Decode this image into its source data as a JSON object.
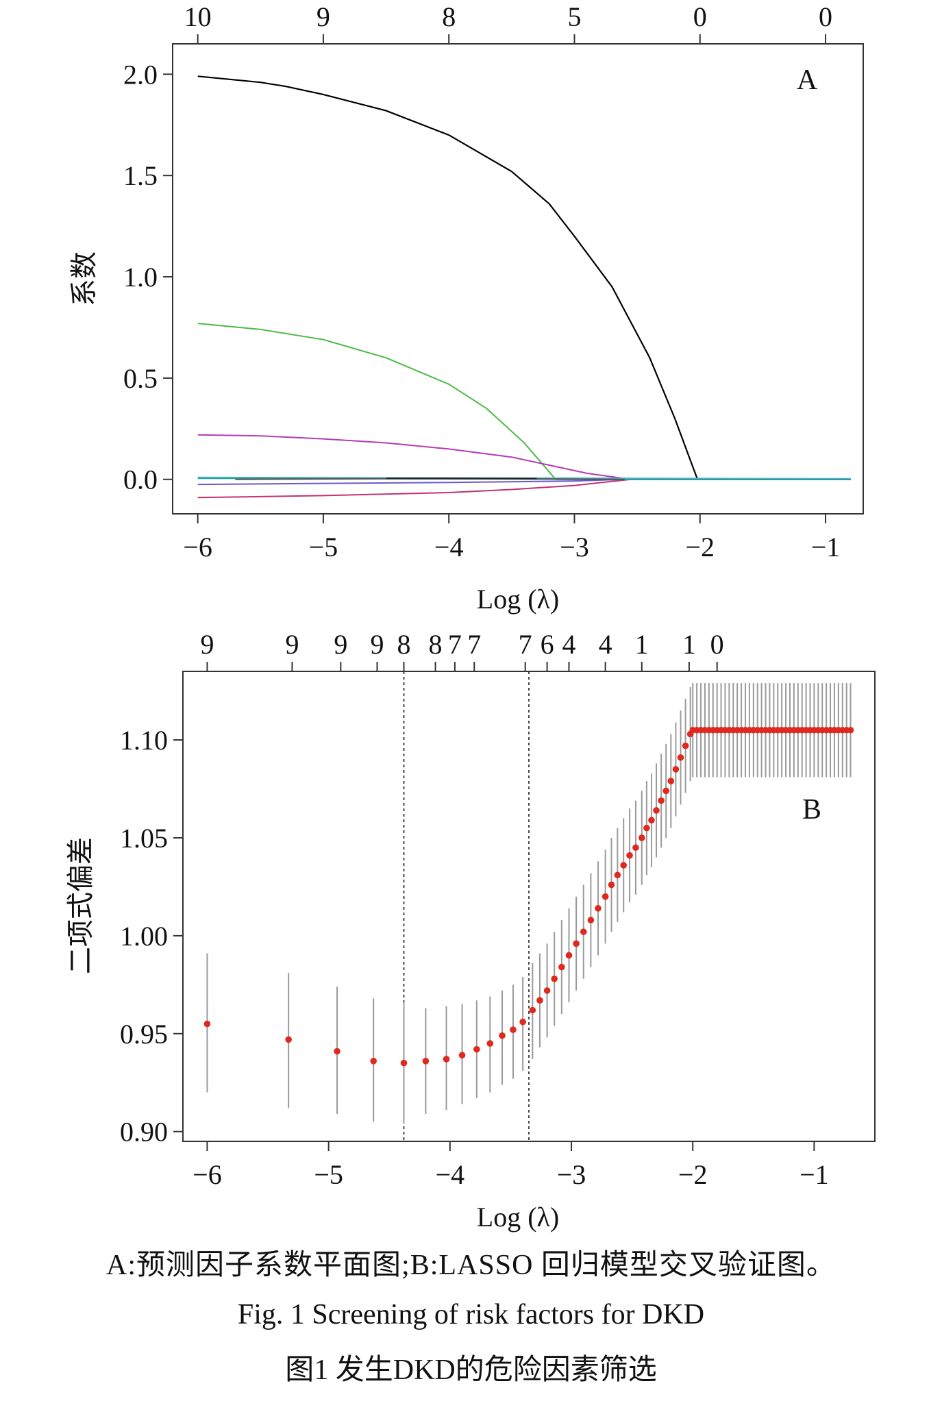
{
  "chart_data": [
    {
      "type": "line",
      "panel_label": "A",
      "xlabel": "Log (λ)",
      "ylabel": "系数",
      "xlim": [
        -6.2,
        -0.7
      ],
      "ylim": [
        -0.17,
        2.15
      ],
      "x_ticks": [
        -6,
        -5,
        -4,
        -3,
        -2,
        -1
      ],
      "y_ticks": [
        "0.0",
        "0.5",
        "1.0",
        "1.5",
        "2.0"
      ],
      "top_axis_ticks": [
        {
          "x": -6,
          "label": "10"
        },
        {
          "x": -5,
          "label": "9"
        },
        {
          "x": -4,
          "label": "8"
        },
        {
          "x": -3,
          "label": "5"
        },
        {
          "x": -2,
          "label": "0"
        },
        {
          "x": -1,
          "label": "0"
        }
      ],
      "series": [
        {
          "color": "#000000",
          "x": [
            -6,
            -5.5,
            -5.3,
            -5,
            -4.5,
            -4,
            -3.5,
            -3.2,
            -3,
            -2.7,
            -2.4,
            -2.2,
            -2.08,
            -2.02,
            -1.5,
            -0.8
          ],
          "y": [
            1.99,
            1.96,
            1.94,
            1.9,
            1.82,
            1.7,
            1.52,
            1.36,
            1.2,
            0.95,
            0.6,
            0.3,
            0.1,
            0.0,
            0.0,
            0.0
          ]
        },
        {
          "color": "#4cbb47",
          "x": [
            -6,
            -5.5,
            -5,
            -4.5,
            -4,
            -3.7,
            -3.4,
            -3.15,
            -3.0,
            -2,
            -0.8
          ],
          "y": [
            0.77,
            0.74,
            0.69,
            0.6,
            0.47,
            0.35,
            0.18,
            0.0,
            0.0,
            0.0,
            0.0
          ]
        },
        {
          "color": "#b43bb4",
          "x": [
            -6,
            -5.5,
            -5,
            -4.5,
            -4,
            -3.5,
            -3.2,
            -2.9,
            -2.55,
            -2,
            -0.8
          ],
          "y": [
            0.22,
            0.215,
            0.2,
            0.18,
            0.15,
            0.11,
            0.07,
            0.03,
            0.0,
            0.0,
            0.0
          ]
        },
        {
          "color": "#c0326e",
          "x": [
            -6,
            -5,
            -4,
            -3.5,
            -3,
            -2.55,
            -2,
            -0.8
          ],
          "y": [
            -0.09,
            -0.08,
            -0.065,
            -0.05,
            -0.03,
            0.0,
            0.0,
            0.0
          ]
        },
        {
          "color": "#6a5acd",
          "x": [
            -6,
            -5,
            -4,
            -3,
            -2.6,
            -2,
            -0.8
          ],
          "y": [
            -0.025,
            -0.02,
            -0.015,
            -0.008,
            0.0,
            0.0,
            0.0
          ]
        },
        {
          "color": "#4db8d4",
          "x": [
            -6,
            -0.8
          ],
          "y": [
            0.01,
            0.003
          ]
        },
        {
          "color": "#2aa198",
          "x": [
            -6,
            -4,
            -2.6,
            -0.8
          ],
          "y": [
            0.005,
            0.003,
            0.0,
            0.0
          ]
        },
        {
          "color": "#555555",
          "x": [
            -5.7,
            -4.5,
            -3.3,
            -2.6
          ],
          "y": [
            0.0,
            0.003,
            0.002,
            0.0
          ]
        },
        {
          "color": "#222222",
          "x": [
            -4.5,
            -4.0,
            -3.3
          ],
          "y": [
            0.005,
            0.005,
            0.004
          ]
        }
      ]
    },
    {
      "type": "scatter",
      "panel_label": "B",
      "xlabel": "Log (λ)",
      "ylabel": "二项式偏差",
      "xlim": [
        -6.2,
        -0.5
      ],
      "ylim": [
        0.895,
        1.135
      ],
      "x_ticks": [
        -6,
        -5,
        -4,
        -3,
        -2,
        -1
      ],
      "y_ticks": [
        "0.90",
        "0.95",
        "1.00",
        "1.05",
        "1.10"
      ],
      "top_axis_ticks": [
        {
          "x": -6,
          "label": "9"
        },
        {
          "x": -5.3,
          "label": "9"
        },
        {
          "x": -4.9,
          "label": "9"
        },
        {
          "x": -4.6,
          "label": "9"
        },
        {
          "x": -4.38,
          "label": "8"
        },
        {
          "x": -4.12,
          "label": "8"
        },
        {
          "x": -3.96,
          "label": "7"
        },
        {
          "x": -3.8,
          "label": "7"
        },
        {
          "x": -3.38,
          "label": "7"
        },
        {
          "x": -3.2,
          "label": "6"
        },
        {
          "x": -3.02,
          "label": "4"
        },
        {
          "x": -2.72,
          "label": "4"
        },
        {
          "x": -2.42,
          "label": "1"
        },
        {
          "x": -2.03,
          "label": "1"
        },
        {
          "x": -1.8,
          "label": "0"
        }
      ],
      "vlines": [
        -4.38,
        -3.35
      ],
      "points": {
        "x": [
          -6.0,
          -5.33,
          -4.93,
          -4.63,
          -4.38,
          -4.2,
          -4.03,
          -3.9,
          -3.78,
          -3.67,
          -3.57,
          -3.48,
          -3.4,
          -3.32,
          -3.26,
          -3.2,
          -3.14,
          -3.08,
          -3.02,
          -2.96,
          -2.9,
          -2.84,
          -2.78,
          -2.72,
          -2.67,
          -2.62,
          -2.57,
          -2.52,
          -2.47,
          -2.42,
          -2.38,
          -2.34,
          -2.3,
          -2.26,
          -2.22,
          -2.18,
          -2.14,
          -2.1,
          -2.06,
          -2.02
        ],
        "y": [
          0.955,
          0.947,
          0.941,
          0.936,
          0.935,
          0.936,
          0.937,
          0.939,
          0.942,
          0.945,
          0.949,
          0.952,
          0.956,
          0.962,
          0.967,
          0.972,
          0.978,
          0.984,
          0.99,
          0.996,
          1.002,
          1.008,
          1.014,
          1.02,
          1.026,
          1.031,
          1.036,
          1.041,
          1.045,
          1.05,
          1.055,
          1.059,
          1.064,
          1.069,
          1.074,
          1.079,
          1.085,
          1.091,
          1.097,
          1.103
        ],
        "err_low": [
          0.92,
          0.912,
          0.909,
          0.905,
          0.904,
          0.909,
          0.911,
          0.914,
          0.917,
          0.92,
          0.924,
          0.927,
          0.931,
          0.937,
          0.943,
          0.948,
          0.954,
          0.96,
          0.966,
          0.972,
          0.978,
          0.984,
          0.99,
          0.996,
          1.002,
          1.007,
          1.012,
          1.017,
          1.021,
          1.026,
          1.031,
          1.035,
          1.04,
          1.045,
          1.05,
          1.055,
          1.061,
          1.067,
          1.073,
          1.079
        ],
        "err_high": [
          0.991,
          0.981,
          0.974,
          0.968,
          0.966,
          0.963,
          0.964,
          0.965,
          0.967,
          0.969,
          0.972,
          0.975,
          0.979,
          0.986,
          0.991,
          0.996,
          1.002,
          1.008,
          1.014,
          1.02,
          1.026,
          1.032,
          1.038,
          1.044,
          1.05,
          1.055,
          1.06,
          1.065,
          1.069,
          1.074,
          1.079,
          1.083,
          1.088,
          1.093,
          1.098,
          1.103,
          1.109,
          1.115,
          1.121,
          1.127
        ]
      },
      "plateau": {
        "x_start": -2.0,
        "x_end": -0.7,
        "y": 1.105,
        "err_low": 1.081,
        "err_high": 1.129,
        "count": 40
      }
    }
  ],
  "caption": {
    "line1": "A:预测因子系数平面图;B:LASSO 回归模型交叉验证图。",
    "line2": "Fig. 1    Screening of risk factors for DKD",
    "line3": "图1    发生DKD的危险因素筛选"
  }
}
